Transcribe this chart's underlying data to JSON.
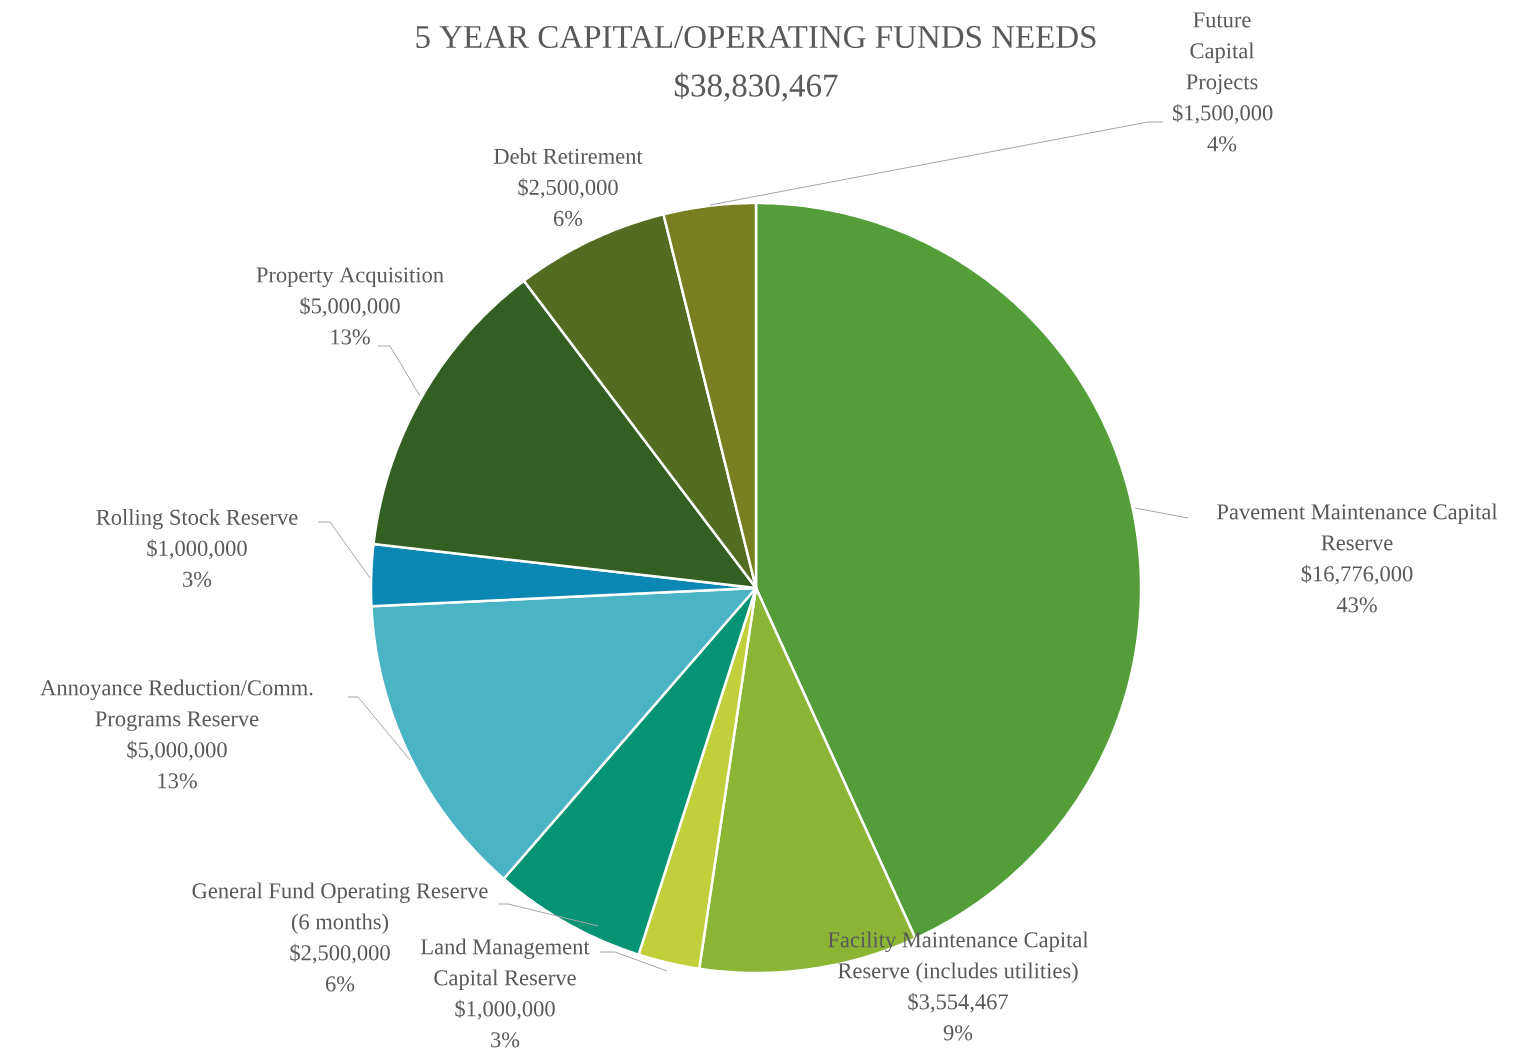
{
  "chart_data": {
    "type": "pie",
    "title": "5 YEAR CAPITAL/OPERATING FUNDS NEEDS",
    "subtitle": "$38,830,467",
    "categories": [
      "Pavement Maintenance Capital Reserve",
      "Facility Maintenance Capital Reserve (includes utilities)",
      "Land Management Capital Reserve",
      "General Fund Operating Reserve (6 months)",
      "Annoyance Reduction/Comm. Programs Reserve",
      "Rolling Stock Reserve",
      "Property Acquisition",
      "Debt Retirement",
      "Future Capital Projects"
    ],
    "values": [
      16776000,
      3554467,
      1000000,
      2500000,
      5000000,
      1000000,
      5000000,
      2500000,
      1500000
    ],
    "value_labels": [
      "$16,776,000 43%",
      "$3,554,467 9%",
      "$1,000,000 3%",
      "$2,500,000 6%",
      "$5,000,000 13%",
      "$1,000,000 3%",
      "$5,000,000 13%",
      "$2,500,000 6%",
      "$1,500,000 4%"
    ],
    "colors": [
      "#549e3a",
      "#8bb535",
      "#c0cf3a",
      "#049373",
      "#4bb4c4",
      "#0b87b3",
      "#335f23",
      "#546c21",
      "#787f20"
    ]
  }
}
